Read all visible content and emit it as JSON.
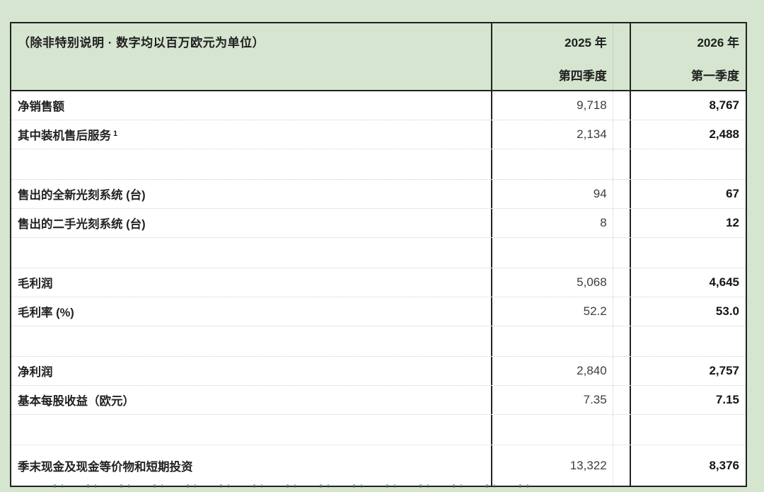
{
  "page": {
    "colors": {
      "background_green": "#d5e5cf",
      "table_border": "#222222",
      "cell_white": "#ffffff",
      "dotted_gridline": "#ccd5c9",
      "value_2025_text": "#3d3d3d",
      "value_2026_text": "#161616"
    }
  },
  "table": {
    "unit_note": "（除非特别说明 · 数字均以百万欧元为单位）",
    "columns": [
      {
        "year": "2025 年",
        "quarter": "第四季度"
      },
      {
        "year": "2026 年",
        "quarter": "第一季度"
      }
    ],
    "rows": [
      {
        "type": "data",
        "label": "净销售额",
        "sup": "",
        "q4_2025": "9,718",
        "q1_2026": "8,767"
      },
      {
        "type": "data",
        "label": "其中装机售后服务",
        "sup": "1",
        "q4_2025": "2,134",
        "q1_2026": "2,488"
      },
      {
        "type": "blank",
        "label": "",
        "sup": "",
        "q4_2025": "",
        "q1_2026": ""
      },
      {
        "type": "data",
        "label": "售出的全新光刻系统 (台)",
        "sup": "",
        "q4_2025": "94",
        "q1_2026": "67"
      },
      {
        "type": "data",
        "label": "售出的二手光刻系统 (台)",
        "sup": "",
        "q4_2025": "8",
        "q1_2026": "12"
      },
      {
        "type": "blank",
        "label": "",
        "sup": "",
        "q4_2025": "",
        "q1_2026": ""
      },
      {
        "type": "data",
        "label": "毛利润",
        "sup": "",
        "q4_2025": "5,068",
        "q1_2026": "4,645"
      },
      {
        "type": "data",
        "label": "毛利率 (%)",
        "sup": "",
        "q4_2025": "52.2",
        "q1_2026": "53.0"
      },
      {
        "type": "blank",
        "label": "",
        "sup": "",
        "q4_2025": "",
        "q1_2026": ""
      },
      {
        "type": "data",
        "label": "净利润",
        "sup": "",
        "q4_2025": "2,840",
        "q1_2026": "2,757"
      },
      {
        "type": "data",
        "label": "基本每股收益（欧元）",
        "sup": "",
        "q4_2025": "7.35",
        "q1_2026": "7.15"
      },
      {
        "type": "blank",
        "label": "",
        "sup": "",
        "q4_2025": "",
        "q1_2026": ""
      },
      {
        "type": "last",
        "label": "季末现金及现金等价物和短期投资",
        "sup": "",
        "q4_2025": "13,322",
        "q1_2026": "8,376"
      }
    ]
  }
}
